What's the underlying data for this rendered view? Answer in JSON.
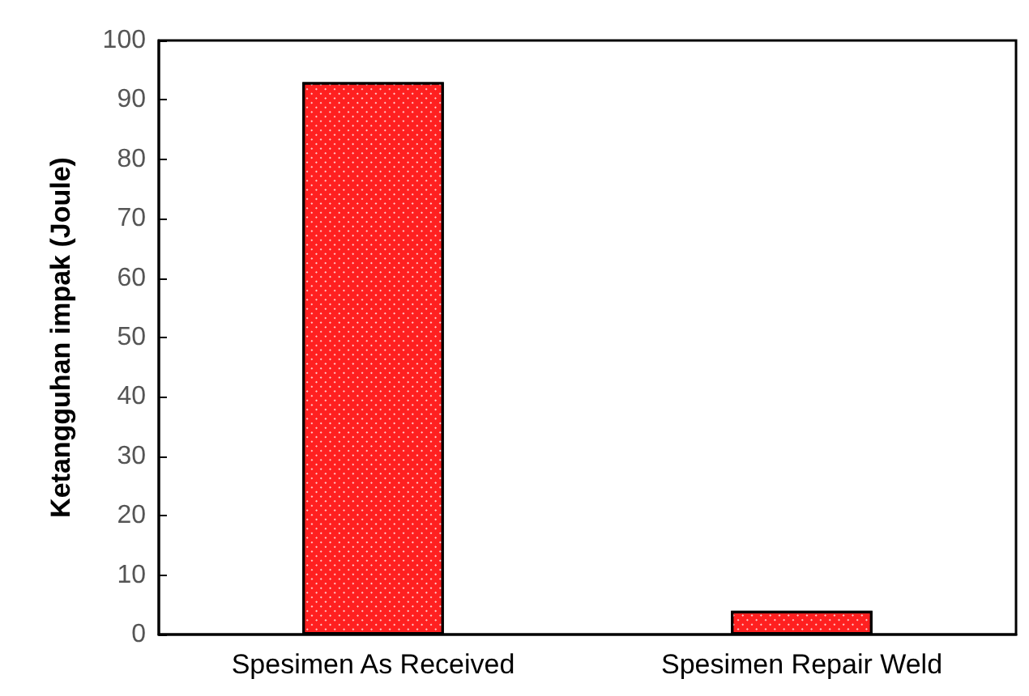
{
  "chart_data": {
    "type": "bar",
    "ylabel": "Ketangguhan impak (Joule)",
    "categories": [
      "Spesimen As Received",
      "Spesimen Repair Weld"
    ],
    "values": [
      93,
      4
    ],
    "color": "#ff2020",
    "ylim": [
      0,
      100
    ],
    "yticks": [
      0,
      10,
      20,
      30,
      40,
      50,
      60,
      70,
      80,
      90,
      100
    ],
    "grid": false
  }
}
